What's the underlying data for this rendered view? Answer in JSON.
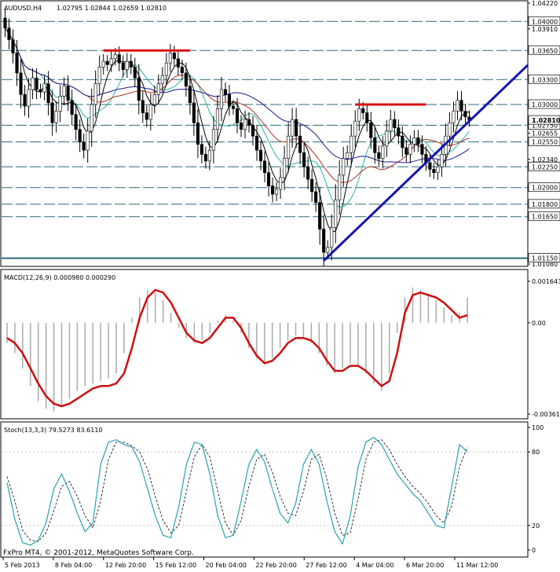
{
  "header": {
    "symbol_title": "AUDUSD,H4",
    "ohlc": "1.02795 1.02844 1.02659 1.02810"
  },
  "panels": {
    "macd_title": "MACD(12,26,9) 0.000980 0.000290",
    "stoch_title": "Stoch(13,3,3) 79.5273 83.6110",
    "copyright": "FxPro MT4, © 2001-2012, MetaQuotes Software Corp."
  },
  "colors": {
    "candles": "#000000",
    "ma_fast": "#000000",
    "ma_aqua": "#2ab5a8",
    "ma_red": "#b03020",
    "ma_blue": "#1a1a90",
    "levels": "#2a6a7a",
    "resistance": "#d81010",
    "trendline": "#1414b0",
    "macd_signal": "#cc1010",
    "macd_hist": "#aaaaaa",
    "stoch_main": "#2aa0b0",
    "stoch_signal": "#333333",
    "grid": "#6f8f9f"
  },
  "chart_data": [
    {
      "type": "candlestick",
      "symbol": "AUDUSD",
      "timeframe": "H4",
      "y_ticks": [
        "1.04220",
        "1.03910",
        "1.03650",
        "1.03300",
        "1.03000",
        "1.02655",
        "1.02340",
        "1.02000",
        "1.01650",
        "1.01080"
      ],
      "ylim": [
        1.0108,
        1.0422
      ],
      "levels": [
        {
          "value": 1.04,
          "label": "1.04000"
        },
        {
          "value": 1.0365,
          "label": "1.03650"
        },
        {
          "value": 1.033,
          "label": "1.03300"
        },
        {
          "value": 1.03,
          "label": "1.03000"
        },
        {
          "value": 1.0275,
          "label": "1.02750"
        },
        {
          "value": 1.0255,
          "label": "1.02550"
        },
        {
          "value": 1.0225,
          "label": "1.02250"
        },
        {
          "value": 1.02,
          "label": "1.02000"
        },
        {
          "value": 1.018,
          "label": "1.01800"
        },
        {
          "value": 1.0165,
          "label": "1.01650"
        },
        {
          "value": 1.0115,
          "label": "1.01150"
        }
      ],
      "current_price_label": "1.02810",
      "current_price": 1.0281,
      "resistance_lines": [
        {
          "value": 1.0365,
          "from_bar": 25,
          "to_bar": 47
        },
        {
          "value": 1.03,
          "from_bar": 89,
          "to_bar": 107
        }
      ],
      "trendline": {
        "from": {
          "bar": 81,
          "price": 1.0112
        },
        "to": {
          "bar": 120,
          "price": 1.0289
        }
      },
      "x_labels": [
        "5 Feb 2013",
        "8 Feb 04:00",
        "12 Feb 20:00",
        "15 Feb 12:00",
        "20 Feb 04:00",
        "22 Feb 20:00",
        "27 Feb 12:00",
        "4 Mar 04:00",
        "6 Mar 20:00",
        "11 Mar 12:00"
      ],
      "closes": [
        1.0392,
        1.0378,
        1.0362,
        1.0338,
        1.0312,
        1.0298,
        1.0318,
        1.0332,
        1.0318,
        1.0315,
        1.0325,
        1.0302,
        1.0278,
        1.0292,
        1.031,
        1.0322,
        1.0305,
        1.0288,
        1.027,
        1.0255,
        1.0245,
        1.0268,
        1.03,
        1.0325,
        1.0345,
        1.0352,
        1.0348,
        1.0355,
        1.036,
        1.035,
        1.0342,
        1.0352,
        1.0345,
        1.0332,
        1.0305,
        1.029,
        1.0282,
        1.03,
        1.0312,
        1.0325,
        1.0335,
        1.035,
        1.0362,
        1.0355,
        1.0345,
        1.0338,
        1.0322,
        1.0302,
        1.0278,
        1.0252,
        1.024,
        1.0232,
        1.0245,
        1.027,
        1.0295,
        1.0318,
        1.0312,
        1.0298,
        1.0295,
        1.0278,
        1.027,
        1.0282,
        1.0275,
        1.0262,
        1.0245,
        1.0232,
        1.0218,
        1.0202,
        1.0192,
        1.0198,
        1.0212,
        1.0235,
        1.0262,
        1.0282,
        1.0262,
        1.0242,
        1.0225,
        1.021,
        1.0195,
        1.0182,
        1.015,
        1.0122,
        1.0128,
        1.0152,
        1.0185,
        1.0215,
        1.0235,
        1.0242,
        1.0262,
        1.028,
        1.0295,
        1.029,
        1.0278,
        1.026,
        1.0242,
        1.0235,
        1.025,
        1.0268,
        1.0282,
        1.0272,
        1.0262,
        1.0248,
        1.024,
        1.0252,
        1.026,
        1.0252,
        1.024,
        1.023,
        1.0222,
        1.0218,
        1.0225,
        1.024,
        1.0262,
        1.0278,
        1.0292,
        1.0305,
        1.0292,
        1.0285,
        1.0281
      ]
    },
    {
      "type": "line",
      "title": "MACD(12,26,9) 0.000980 0.000290",
      "y_ticks": [
        "0.001643",
        "0.00",
        "-0.003610"
      ],
      "ylim": [
        -0.00361,
        0.001643
      ],
      "signal": [
        -0.0006,
        -0.0008,
        -0.0012,
        -0.0018,
        -0.0024,
        -0.0029,
        -0.0032,
        -0.0033,
        -0.0032,
        -0.003,
        -0.0028,
        -0.0026,
        -0.0025,
        -0.0025,
        -0.0024,
        -0.002,
        -0.001,
        0.0002,
        0.001,
        0.0013,
        0.0012,
        0.0008,
        0.0002,
        -0.0004,
        -0.0007,
        -0.0008,
        -0.0006,
        -0.0002,
        0.0002,
        0.0002,
        -0.0002,
        -0.0008,
        -0.0013,
        -0.0016,
        -0.0015,
        -0.0012,
        -0.0008,
        -0.0006,
        -0.0006,
        -0.0007,
        -0.001,
        -0.0015,
        -0.0019,
        -0.0019,
        -0.0017,
        -0.0017,
        -0.0019,
        -0.0022,
        -0.0025,
        -0.0023,
        -0.0012,
        0.0004,
        0.0011,
        0.0012,
        0.0011,
        0.001,
        0.0008,
        0.0005,
        0.0002,
        0.0003
      ],
      "histogram": [
        -0.0008,
        -0.0012,
        -0.0018,
        -0.0025,
        -0.0031,
        -0.0034,
        -0.0035,
        -0.0033,
        -0.003,
        -0.0027,
        -0.0025,
        -0.0024,
        -0.0023,
        -0.0022,
        -0.002,
        -0.0012,
        0.0002,
        0.001,
        0.0013,
        0.0012,
        0.0009,
        0.0004,
        -0.0002,
        -0.0006,
        -0.0008,
        -0.0007,
        -0.0004,
        0.0001,
        0.0003,
        0.0001,
        -0.0004,
        -0.001,
        -0.0014,
        -0.0016,
        -0.0014,
        -0.001,
        -0.0007,
        -0.0005,
        -0.0006,
        -0.0008,
        -0.0012,
        -0.0017,
        -0.002,
        -0.0018,
        -0.0016,
        -0.0017,
        -0.002,
        -0.0024,
        -0.0027,
        -0.002,
        -0.0004,
        0.001,
        0.0014,
        0.0013,
        0.0011,
        0.0009,
        0.0006,
        0.0003,
        0.0004,
        0.001
      ]
    },
    {
      "type": "line",
      "title": "Stoch(13,3,3) 79.5273 83.6110",
      "y_ticks": [
        "100",
        "80",
        "20",
        "0"
      ],
      "ylim": [
        0,
        100
      ],
      "main": [
        55,
        25,
        6,
        4,
        8,
        22,
        50,
        62,
        48,
        30,
        15,
        22,
        70,
        88,
        90,
        86,
        84,
        72,
        50,
        28,
        12,
        10,
        35,
        70,
        88,
        86,
        62,
        28,
        10,
        12,
        40,
        70,
        82,
        72,
        50,
        30,
        22,
        38,
        70,
        82,
        70,
        40,
        15,
        5,
        28,
        68,
        88,
        92,
        86,
        74,
        62,
        54,
        46,
        40,
        30,
        20,
        18,
        52,
        86,
        80
      ],
      "signal": [
        60,
        40,
        16,
        8,
        7,
        14,
        32,
        52,
        56,
        44,
        28,
        18,
        40,
        74,
        88,
        88,
        85,
        80,
        66,
        44,
        24,
        14,
        20,
        48,
        76,
        86,
        76,
        48,
        22,
        12,
        24,
        52,
        74,
        78,
        64,
        44,
        30,
        28,
        48,
        74,
        78,
        58,
        30,
        12,
        14,
        42,
        74,
        88,
        90,
        82,
        70,
        60,
        52,
        46,
        38,
        28,
        22,
        36,
        68,
        84
      ]
    }
  ]
}
